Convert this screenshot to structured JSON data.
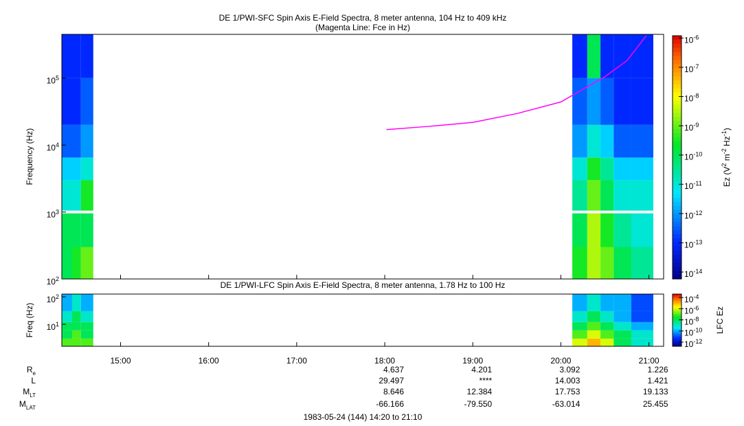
{
  "chart_data": [
    {
      "type": "heatmap",
      "title": "DE 1/PWI-SFC  Spin Axis E-Field Spectra, 8 meter antenna, 104 Hz to 409 kHz",
      "subtitle": "(Magenta Line: Fce in Hz)",
      "y_label": "Frequency (Hz)",
      "log_y": true,
      "log_color": true,
      "xlim": [
        14.333,
        21.167
      ],
      "xticks": [
        15,
        16,
        17,
        18,
        19,
        20,
        21
      ],
      "ylim": [
        100,
        450000
      ],
      "yticks": [
        {
          "value": 100,
          "label": "10",
          "sup": "2"
        },
        {
          "value": 1000,
          "label": "10",
          "sup": "3"
        },
        {
          "value": 10000,
          "label": "10",
          "sup": "4"
        },
        {
          "value": 100000,
          "label": "10",
          "sup": "5"
        }
      ],
      "x_edges": [
        14.333,
        14.45,
        14.55,
        14.69,
        20.13,
        20.3,
        20.45,
        20.6,
        20.8,
        21.05,
        21.167
      ],
      "y_edges": [
        100,
        300,
        1000,
        3000,
        6500,
        20000,
        100000,
        450000
      ],
      "z": [
        [
          1e-10,
          1e-10,
          1e-11,
          3e-12,
          3e-13,
          1e-13,
          1e-13
        ],
        [
          3e-10,
          1e-10,
          1e-11,
          3e-12,
          3e-13,
          1e-13,
          1e-13
        ],
        [
          1e-09,
          1e-10,
          3e-10,
          1e-11,
          1e-12,
          3e-13,
          1e-13
        ],
        [
          null,
          null,
          null,
          null,
          null,
          null,
          null
        ],
        [
          3e-10,
          1e-10,
          3e-11,
          1e-11,
          1e-12,
          3e-13,
          1e-13
        ],
        [
          3e-09,
          3e-09,
          1e-09,
          3e-10,
          1e-11,
          1e-12,
          1e-10
        ],
        [
          1e-09,
          3e-10,
          1e-10,
          3e-11,
          3e-12,
          3e-13,
          1e-13
        ],
        [
          1e-10,
          3e-11,
          1e-11,
          3e-12,
          3e-13,
          1e-13,
          1e-13
        ],
        [
          3e-11,
          1e-11,
          1e-11,
          3e-12,
          3e-13,
          1e-13,
          1e-13
        ],
        [
          null,
          null,
          null,
          null,
          null,
          null,
          null
        ]
      ],
      "clim": [
        5.8e-15,
        1.2e-06
      ],
      "cticks": [
        {
          "value": 1e-06,
          "label": "10",
          "sup": "-6"
        },
        {
          "value": 1e-07,
          "label": "10",
          "sup": "-7"
        },
        {
          "value": 1e-08,
          "label": "10",
          "sup": "-8"
        },
        {
          "value": 1e-09,
          "label": "10",
          "sup": "-9"
        },
        {
          "value": 1e-10,
          "label": "10",
          "sup": "-10"
        },
        {
          "value": 1e-11,
          "label": "10",
          "sup": "-11"
        },
        {
          "value": 1e-12,
          "label": "10",
          "sup": "-12"
        },
        {
          "value": 1e-13,
          "label": "10",
          "sup": "-13"
        },
        {
          "value": 1e-14,
          "label": "10",
          "sup": "-14"
        }
      ],
      "colorbar_label_parts": [
        "Ez (V",
        "2",
        " m",
        "-2",
        " Hz",
        "-1",
        ")"
      ],
      "line": {
        "color": "#ff00ff",
        "x": [
          18.02,
          18.5,
          19,
          19.5,
          20,
          20.5,
          20.75,
          20.97
        ],
        "values": [
          17000,
          19000,
          21800,
          29500,
          44000,
          105000,
          182000,
          430000
        ]
      }
    },
    {
      "type": "heatmap",
      "title": "DE 1/PWI-LFC  Spin Axis E-Field Spectra, 8 meter antenna, 1.78 Hz to 100 Hz",
      "y_label": "Freq (Hz)",
      "log_y": true,
      "log_color": true,
      "xlim": [
        14.333,
        21.167
      ],
      "xticks": [
        {
          "value": 15,
          "label": "15:00"
        },
        {
          "value": 16,
          "label": "16:00"
        },
        {
          "value": 17,
          "label": "17:00"
        },
        {
          "value": 18,
          "label": "18:00"
        },
        {
          "value": 19,
          "label": "19:00"
        },
        {
          "value": 20,
          "label": "20:00"
        },
        {
          "value": 21,
          "label": "21:00"
        }
      ],
      "ylim": [
        1.58,
        126
      ],
      "yticks": [
        {
          "value": 10,
          "label": "10",
          "sup": "1"
        },
        {
          "value": 100,
          "label": "10",
          "sup": "2"
        }
      ],
      "x_edges": [
        14.333,
        14.45,
        14.55,
        14.69,
        20.13,
        20.3,
        20.45,
        20.6,
        20.8,
        21.05,
        21.167
      ],
      "y_edges": [
        1.58,
        3,
        6,
        12,
        30,
        126
      ],
      "z": [
        [
          1e-07,
          1e-08,
          1e-08,
          1e-09,
          1e-10
        ],
        [
          1e-07,
          1e-07,
          1e-08,
          1e-08,
          1e-09
        ],
        [
          1e-07,
          1e-08,
          1e-08,
          1e-09,
          1e-10
        ],
        [
          null,
          null,
          null,
          null,
          null
        ],
        [
          1e-06,
          1e-07,
          1e-08,
          1e-09,
          1e-10
        ],
        [
          1e-05,
          1e-06,
          1e-07,
          1e-08,
          1e-09
        ],
        [
          1e-06,
          1e-07,
          1e-08,
          1e-09,
          1e-10
        ],
        [
          1e-08,
          1e-08,
          1e-09,
          1e-10,
          1e-10
        ],
        [
          1e-09,
          1e-09,
          1e-10,
          1e-11,
          1e-11
        ],
        [
          null,
          null,
          null,
          null,
          null
        ]
      ],
      "clim": [
        1.8e-13,
        0.00042
      ],
      "cticks": [
        {
          "value": 0.0001,
          "label": "10",
          "sup": "-4"
        },
        {
          "value": 1e-06,
          "label": "10",
          "sup": "-6"
        },
        {
          "value": 1e-08,
          "label": "10",
          "sup": "-8"
        },
        {
          "value": 1e-10,
          "label": "10",
          "sup": "-10"
        },
        {
          "value": 1e-12,
          "label": "10",
          "sup": "-12"
        }
      ],
      "colorbar_label_parts": [
        "LFC Ez"
      ]
    }
  ],
  "ephemeris": {
    "rows": [
      {
        "label": "R",
        "sub": "e",
        "values": [
          "4.637",
          "4.201",
          "3.092",
          "1.226"
        ]
      },
      {
        "label": "L",
        "sub": "",
        "values": [
          "29.497",
          "****",
          "14.003",
          "1.421"
        ]
      },
      {
        "label": "M",
        "sub": "LT",
        "values": [
          "8.646",
          "12.384",
          "17.753",
          "19.133"
        ]
      },
      {
        "label": "M",
        "sub": "LAT",
        "values": [
          "-66.166",
          "-79.550",
          "-63.014",
          "25.455"
        ]
      }
    ],
    "footer": "1983-05-24 (144) 14:20 to 21:10"
  }
}
